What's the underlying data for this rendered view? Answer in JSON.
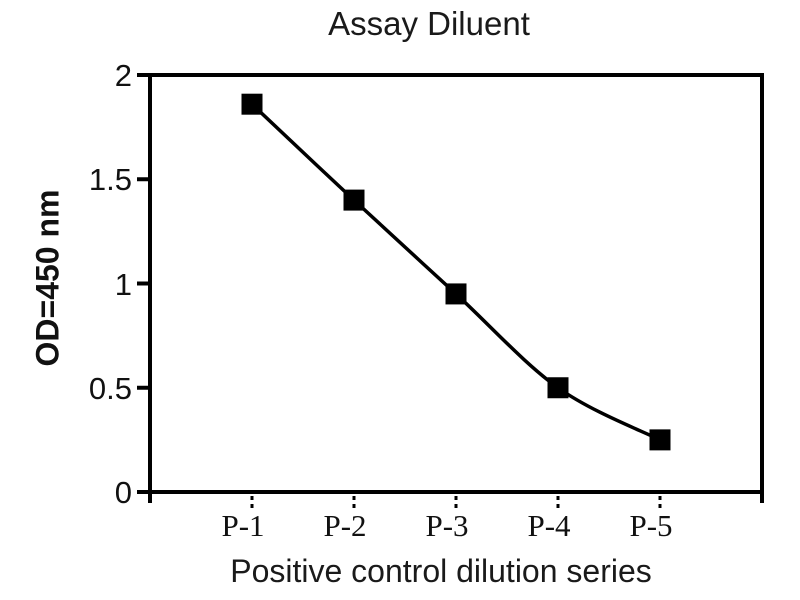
{
  "chart_data": {
    "type": "line",
    "title": "Assay Diluent",
    "xlabel": "Positive control dilution series",
    "ylabel": "OD=450 nm",
    "categories": [
      "P-1",
      "P-2",
      "P-3",
      "P-4",
      "P-5"
    ],
    "values": [
      1.86,
      1.4,
      0.95,
      0.5,
      0.25
    ],
    "ylim": [
      0,
      2
    ],
    "yticks": [
      0,
      0.5,
      1,
      1.5,
      2
    ],
    "ytick_labels": [
      "0",
      "0.5",
      "1",
      "1.5",
      "2"
    ],
    "grid": false,
    "legend_position": "none",
    "marker": "square",
    "line_style": "smooth",
    "colors": {
      "ink": "#000000",
      "background": "#ffffff"
    }
  }
}
